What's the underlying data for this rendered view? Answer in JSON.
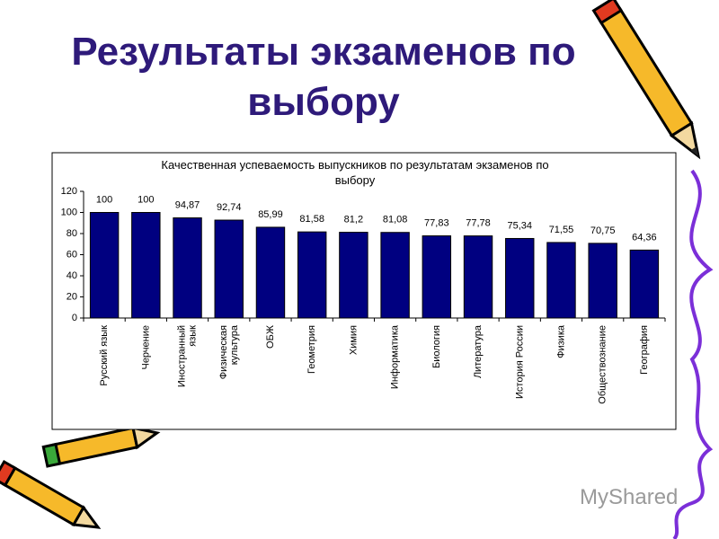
{
  "slide": {
    "title": "Результаты экзаменов по выбору"
  },
  "watermark": "MyShared",
  "chart_data": {
    "type": "bar",
    "title": "Качественная успеваемость выпускников по результатам экзаменов по выбору",
    "categories": [
      "Русский язык",
      "Черчение",
      "Иностранный язык",
      "Физическая культура",
      "ОБЖ",
      "Геометрия",
      "Химия",
      "Информатика",
      "Биология",
      "Литература",
      "История России",
      "Физика",
      "Обществознание",
      "География"
    ],
    "values": [
      100,
      100,
      94.87,
      92.74,
      85.99,
      81.58,
      81.2,
      81.08,
      77.83,
      77.78,
      75.34,
      71.55,
      70.75,
      64.36
    ],
    "value_labels": [
      "100",
      "100",
      "94,87",
      "92,74",
      "85,99",
      "81,58",
      "81,2",
      "81,08",
      "77,83",
      "77,78",
      "75,34",
      "71,55",
      "70,75",
      "64,36"
    ],
    "color": "#000080",
    "ylim": [
      0,
      120
    ],
    "yticks": [
      0,
      20,
      40,
      60,
      80,
      100,
      120
    ]
  }
}
